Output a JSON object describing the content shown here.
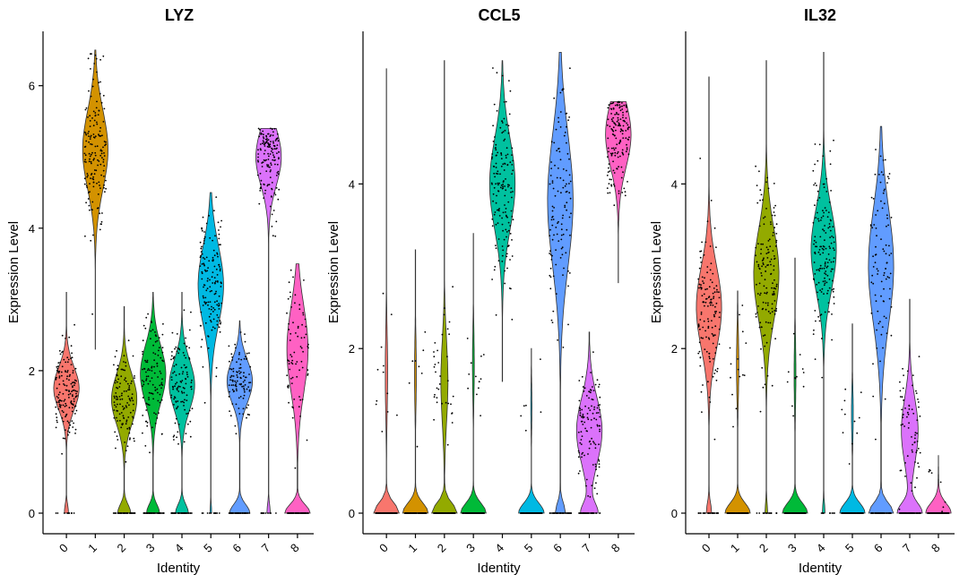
{
  "chart_data": [
    {
      "type": "violin",
      "title": "LYZ",
      "xlabel": "Identity",
      "ylabel": "Expression Level",
      "categories": [
        "0",
        "1",
        "2",
        "3",
        "4",
        "5",
        "6",
        "7",
        "8"
      ],
      "ylim": [
        0,
        6.7
      ],
      "yticks": [
        0,
        2,
        4,
        6
      ],
      "colors": [
        "#F8766D",
        "#D39200",
        "#93AA00",
        "#00BA38",
        "#00C19F",
        "#00B9E3",
        "#619CFF",
        "#DB72FB",
        "#FF61C3"
      ],
      "series": [
        {
          "category": "0",
          "max": 3.1,
          "zero_fraction": 0.12,
          "mode": 1.75,
          "spread": 0.3
        },
        {
          "category": "1",
          "min": 2.3,
          "max": 6.5,
          "zero_fraction": 0.0,
          "mode": 5.1,
          "spread": 0.55
        },
        {
          "category": "2",
          "max": 2.9,
          "zero_fraction": 0.3,
          "mode": 1.6,
          "spread": 0.35
        },
        {
          "category": "3",
          "max": 3.1,
          "zero_fraction": 0.3,
          "mode": 1.95,
          "spread": 0.4
        },
        {
          "category": "4",
          "max": 3.1,
          "zero_fraction": 0.3,
          "mode": 1.8,
          "spread": 0.35
        },
        {
          "category": "5",
          "max": 4.5,
          "zero_fraction": 0.05,
          "mode": 3.2,
          "spread": 0.55
        },
        {
          "category": "6",
          "max": 2.7,
          "zero_fraction": 0.4,
          "mode": 1.85,
          "spread": 0.3
        },
        {
          "category": "7",
          "max": 5.4,
          "zero_fraction": 0.1,
          "mode": 5.0,
          "spread": 0.4
        },
        {
          "category": "8",
          "max": 3.5,
          "zero_fraction": 0.5,
          "mode": 2.3,
          "spread": 0.6
        }
      ]
    },
    {
      "type": "violin",
      "title": "CCL5",
      "xlabel": "Identity",
      "ylabel": "Expression Level",
      "categories": [
        "0",
        "1",
        "2",
        "3",
        "4",
        "5",
        "6",
        "7",
        "8"
      ],
      "ylim": [
        0,
        5.8
      ],
      "yticks": [
        0,
        2,
        4
      ],
      "colors": [
        "#F8766D",
        "#D39200",
        "#93AA00",
        "#00BA38",
        "#00C19F",
        "#00B9E3",
        "#619CFF",
        "#DB72FB",
        "#FF61C3"
      ],
      "series": [
        {
          "category": "0",
          "max": 5.4,
          "zero_fraction": 0.9,
          "mode": 1.7,
          "spread": 0.5
        },
        {
          "category": "1",
          "max": 3.2,
          "zero_fraction": 0.92,
          "mode": 1.7,
          "spread": 0.4
        },
        {
          "category": "2",
          "max": 5.5,
          "zero_fraction": 0.75,
          "mode": 1.6,
          "spread": 0.5
        },
        {
          "category": "3",
          "max": 3.4,
          "zero_fraction": 0.92,
          "mode": 1.8,
          "spread": 0.4
        },
        {
          "category": "4",
          "min": 1.6,
          "max": 5.5,
          "zero_fraction": 0.02,
          "mode": 4.0,
          "spread": 0.55
        },
        {
          "category": "5",
          "max": 2.0,
          "zero_fraction": 0.95,
          "mode": 1.3,
          "spread": 0.3
        },
        {
          "category": "6",
          "max": 5.6,
          "zero_fraction": 0.25,
          "mode": 3.8,
          "spread": 0.8
        },
        {
          "category": "7",
          "max": 2.2,
          "zero_fraction": 0.35,
          "mode": 1.0,
          "spread": 0.4
        },
        {
          "category": "8",
          "min": 2.8,
          "max": 5.0,
          "zero_fraction": 0.0,
          "mode": 4.6,
          "spread": 0.4
        }
      ]
    },
    {
      "type": "violin",
      "title": "IL32",
      "xlabel": "Identity",
      "ylabel": "Expression Level",
      "categories": [
        "0",
        "1",
        "2",
        "3",
        "4",
        "5",
        "6",
        "7",
        "8"
      ],
      "ylim": [
        0,
        5.8
      ],
      "yticks": [
        0,
        2,
        4
      ],
      "colors": [
        "#F8766D",
        "#D39200",
        "#93AA00",
        "#00BA38",
        "#00C19F",
        "#00B9E3",
        "#619CFF",
        "#DB72FB",
        "#FF61C3"
      ],
      "series": [
        {
          "category": "0",
          "max": 5.3,
          "zero_fraction": 0.15,
          "mode": 2.5,
          "spread": 0.5
        },
        {
          "category": "1",
          "max": 2.7,
          "zero_fraction": 0.9,
          "mode": 1.8,
          "spread": 0.4
        },
        {
          "category": "2",
          "max": 5.5,
          "zero_fraction": 0.08,
          "mode": 2.9,
          "spread": 0.55
        },
        {
          "category": "3",
          "max": 3.1,
          "zero_fraction": 0.92,
          "mode": 1.7,
          "spread": 0.4
        },
        {
          "category": "4",
          "max": 5.6,
          "zero_fraction": 0.08,
          "mode": 3.2,
          "spread": 0.5
        },
        {
          "category": "5",
          "max": 2.3,
          "zero_fraction": 0.92,
          "mode": 1.2,
          "spread": 0.3
        },
        {
          "category": "6",
          "max": 4.7,
          "zero_fraction": 0.45,
          "mode": 3.0,
          "spread": 0.7
        },
        {
          "category": "7",
          "max": 2.6,
          "zero_fraction": 0.55,
          "mode": 1.0,
          "spread": 0.4
        },
        {
          "category": "8",
          "max": 0.7,
          "zero_fraction": 0.97,
          "mode": 0.3,
          "spread": 0.2
        }
      ]
    }
  ]
}
